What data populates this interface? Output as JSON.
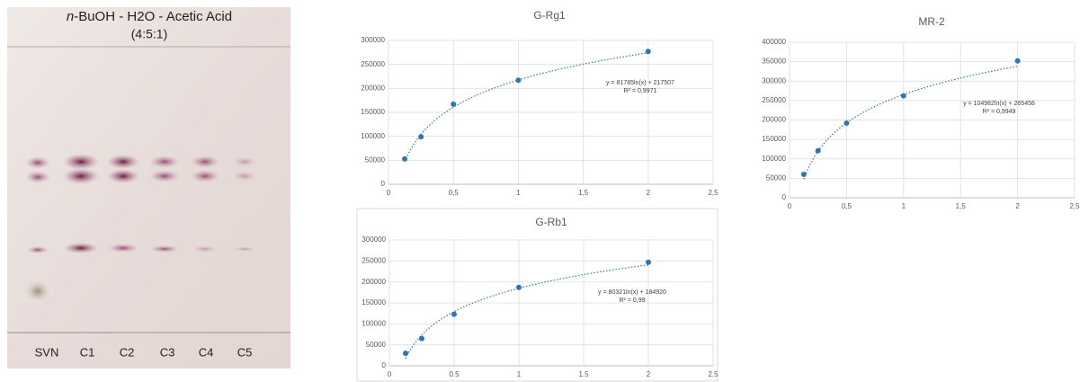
{
  "plate": {
    "title": [
      "n",
      "-BuOH - H2O - Acetic Acid"
    ],
    "ratio": "(4:5:1)",
    "lanes": [
      "SVN",
      "C1",
      "C2",
      "C3",
      "C4",
      "C5"
    ]
  },
  "chart_data": [
    {
      "type": "scatter",
      "title": "G-Rg1",
      "color": "#2e75b6",
      "grid": true,
      "x": [
        0.125,
        0.25,
        0.5,
        1,
        2
      ],
      "values": [
        53000,
        99000,
        167000,
        217000,
        277000
      ],
      "xlim": [
        0,
        2.5
      ],
      "xticks": [
        0,
        {
          "value": 0.5,
          "label": "0,5"
        },
        1,
        {
          "value": 1.5,
          "label": "1,5"
        },
        2,
        {
          "value": 2.5,
          "label": "2,5"
        }
      ],
      "ylim": [
        0,
        300000
      ],
      "yticks": [
        0,
        50000,
        100000,
        150000,
        200000,
        250000,
        300000
      ],
      "trendline": {
        "type": "log",
        "a": 81785,
        "b": 217507,
        "equation": "y = 81785ln(x) + 217507",
        "r2": "R² = 0,9971"
      }
    },
    {
      "type": "scatter",
      "title": "MR-2",
      "color": "#2e75b6",
      "grid": true,
      "x": [
        0.125,
        0.25,
        0.5,
        1,
        2
      ],
      "values": [
        60000,
        121000,
        192000,
        262000,
        352000
      ],
      "xlim": [
        0,
        2.5
      ],
      "xticks": [
        0,
        {
          "value": 0.5,
          "label": "0,5"
        },
        1,
        {
          "value": 1.5,
          "label": "1,5"
        },
        2,
        {
          "value": 2.5,
          "label": "2,5"
        }
      ],
      "ylim": [
        0,
        400000
      ],
      "yticks": [
        0,
        50000,
        100000,
        150000,
        200000,
        250000,
        300000,
        350000,
        400000
      ],
      "trendline": {
        "type": "log",
        "a": 104982,
        "b": 265456,
        "equation": "y = 104982ln(x) + 265456",
        "r2": "R² = 0,9949"
      }
    },
    {
      "type": "scatter",
      "title": "G-Rb1",
      "color": "#2e75b6",
      "grid": true,
      "x": [
        0.125,
        0.25,
        0.5,
        1,
        2
      ],
      "values": [
        30000,
        65000,
        123000,
        187000,
        247000
      ],
      "xlim": [
        0,
        2.5
      ],
      "xticks": [
        0,
        0.5,
        1,
        1.5,
        2,
        2.5
      ],
      "ylim": [
        0,
        300000
      ],
      "yticks": [
        0,
        50000,
        100000,
        150000,
        200000,
        250000,
        300000
      ],
      "trendline": {
        "type": "log",
        "a": 80321,
        "b": 184920,
        "equation": "y = 80321ln(x) + 184920",
        "r2": "R² = 0,99"
      }
    }
  ]
}
